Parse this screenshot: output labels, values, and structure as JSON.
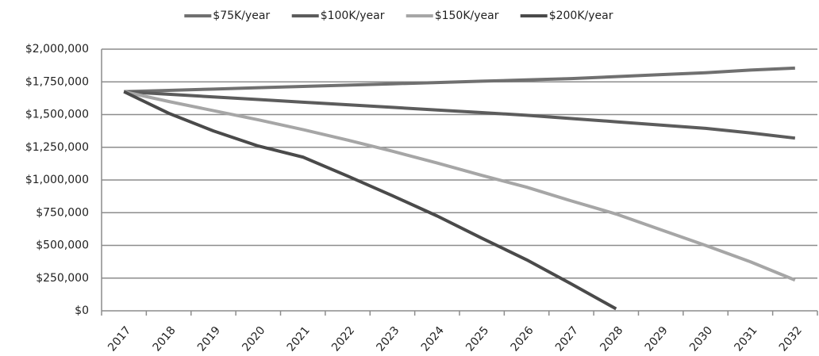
{
  "chart_data": {
    "type": "line",
    "categories": [
      "2017",
      "2018",
      "2019",
      "2020",
      "2021",
      "2022",
      "2023",
      "2024",
      "2025",
      "2026",
      "2027",
      "2028",
      "2029",
      "2030",
      "2031",
      "2032"
    ],
    "series": [
      {
        "name": "$75K/year",
        "color": "#707070",
        "values": [
          1675000,
          1685000,
          1695000,
          1705000,
          1715000,
          1725000,
          1735000,
          1745000,
          1755000,
          1765000,
          1775000,
          1790000,
          1805000,
          1820000,
          1840000,
          1855000
        ]
      },
      {
        "name": "$100K/year",
        "color": "#5c5c5c",
        "values": [
          1675000,
          1655000,
          1635000,
          1615000,
          1595000,
          1575000,
          1555000,
          1535000,
          1515000,
          1495000,
          1470000,
          1445000,
          1420000,
          1395000,
          1360000,
          1320000
        ]
      },
      {
        "name": "$150K/year",
        "color": "#a6a6a6",
        "values": [
          1675000,
          1600000,
          1530000,
          1460000,
          1385000,
          1305000,
          1220000,
          1130000,
          1035000,
          945000,
          840000,
          740000,
          620000,
          500000,
          375000,
          235000
        ]
      },
      {
        "name": "$200K/year",
        "color": "#4a4a4a",
        "values": [
          1675000,
          1510000,
          1375000,
          1260000,
          1175000,
          1030000,
          880000,
          725000,
          555000,
          390000,
          205000,
          15000,
          null,
          null,
          null,
          null
        ]
      }
    ],
    "ylim": [
      0,
      2000000
    ],
    "yticks": [
      {
        "value": 0,
        "label": "$0"
      },
      {
        "value": 250000,
        "label": "$250,000"
      },
      {
        "value": 500000,
        "label": "$500,000"
      },
      {
        "value": 750000,
        "label": "$750,000"
      },
      {
        "value": 1000000,
        "label": "$1,000,000"
      },
      {
        "value": 1250000,
        "label": "$1,250,000"
      },
      {
        "value": 1500000,
        "label": "$1,500,000"
      },
      {
        "value": 1750000,
        "label": "$1,750,000"
      },
      {
        "value": 2000000,
        "label": "$2,000,000"
      }
    ],
    "grid": true,
    "legend": "top"
  }
}
